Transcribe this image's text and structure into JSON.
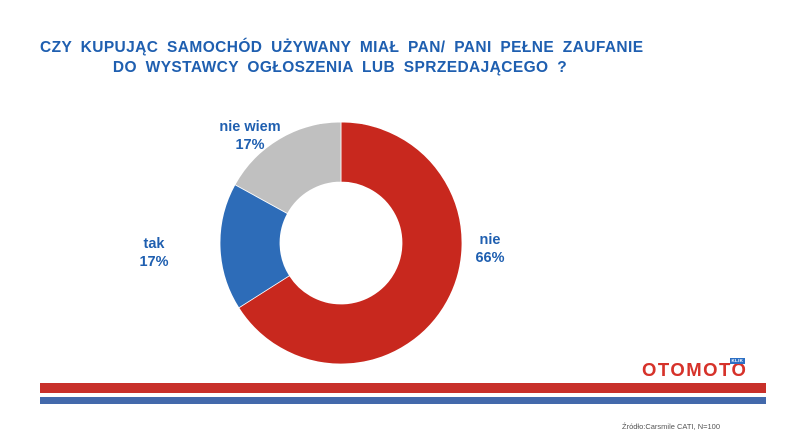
{
  "title": {
    "line1": "CZY  KUPUJĄC  SAMOCHÓD  UŻYWANY  MIAŁ  PAN/ PANI  PEŁNE   ZAUFANIE",
    "line2": "DO  WYSTAWCY  OGŁOSZENIA  LUB  SPRZEDAJĄCEGO  ?"
  },
  "chart_data": {
    "type": "pie",
    "donut": true,
    "title": "CZY KUPUJĄC SAMOCHÓD UŻYWANY MIAŁ PAN/ PANI PEŁNE ZAUFANIE DO WYSTAWCY OGŁOSZENIA LUB SPRZEDAJĄCEGO ?",
    "slices": [
      {
        "label": "nie",
        "value": 66,
        "value_label": "66%",
        "color": "#c8281e"
      },
      {
        "label": "tak",
        "value": 17,
        "value_label": "17%",
        "color": "#2d6cb8"
      },
      {
        "label": "nie wiem",
        "value": 17,
        "value_label": "17%",
        "color": "#c0c0c0"
      }
    ],
    "legend": "none"
  },
  "logo": {
    "text": "OTOMOTO",
    "badge": "KLIK"
  },
  "source": "Źródło:Carsmile CATI, N=100"
}
